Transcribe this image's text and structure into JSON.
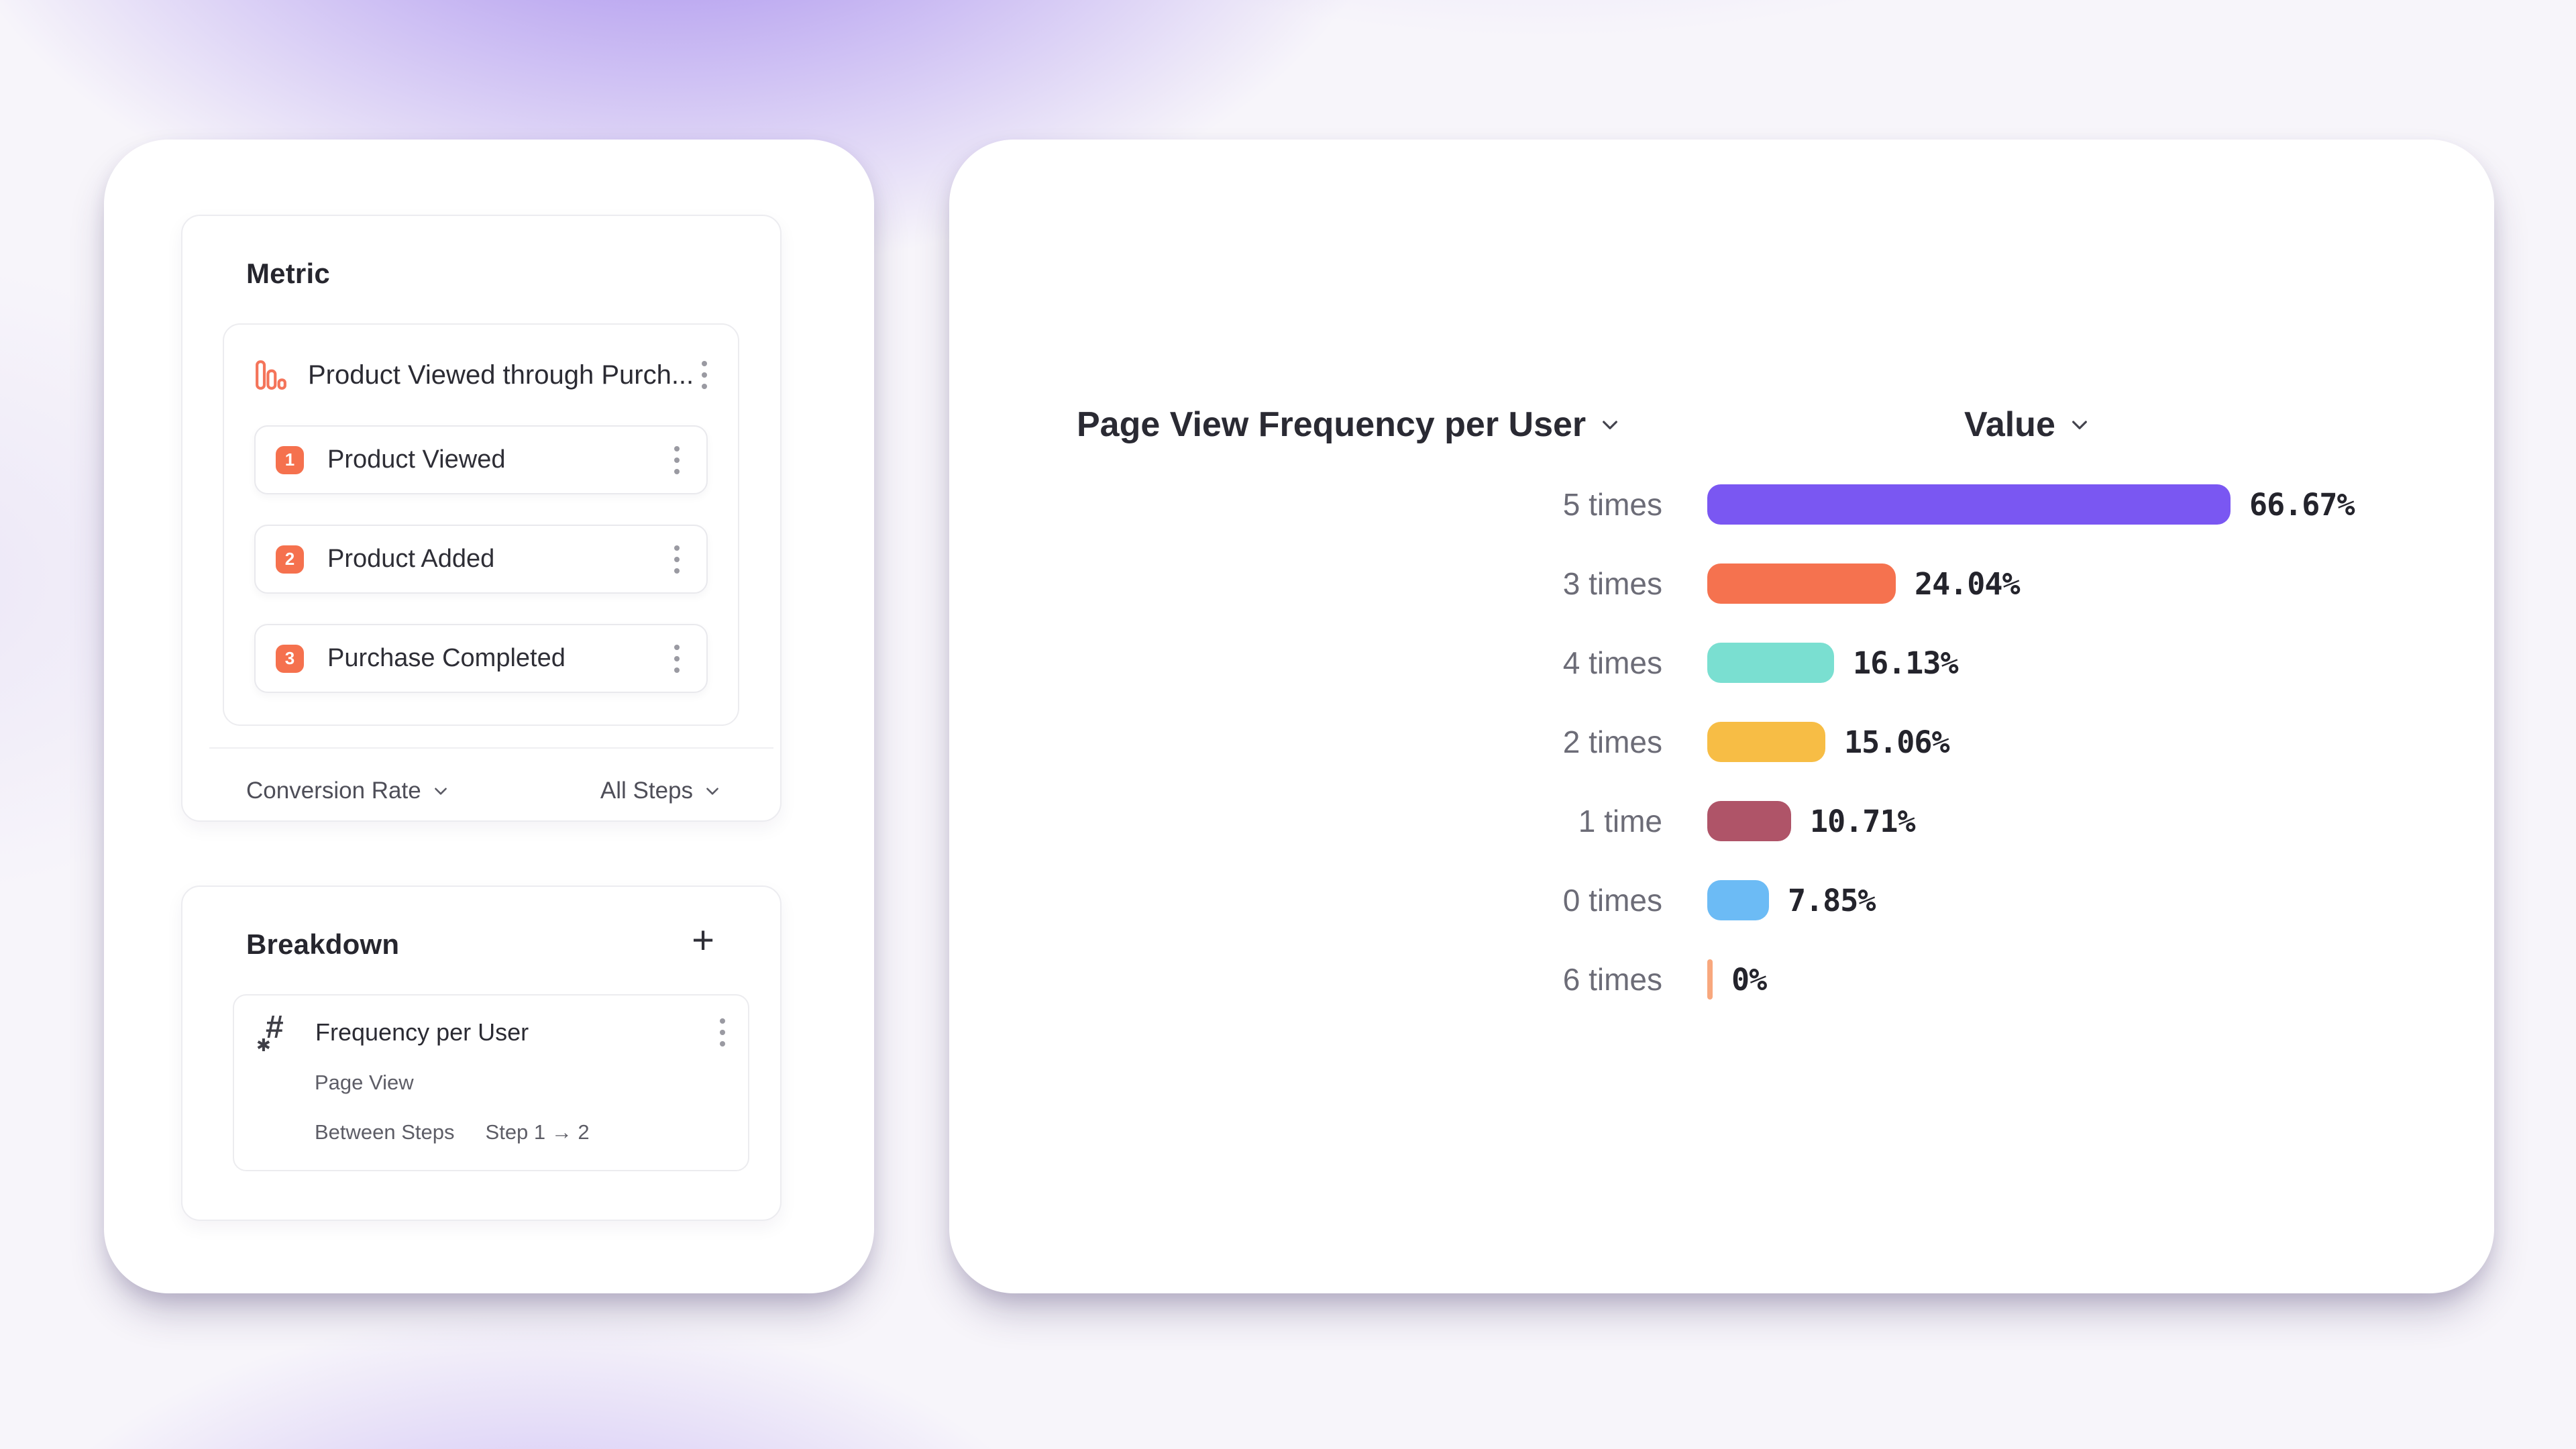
{
  "left_panel": {
    "metric_card": {
      "title": "Metric",
      "funnel": {
        "name": "Product Viewed through Purch...",
        "icon": "funnel-bars-icon",
        "accent_color": "#F5714E",
        "steps": [
          {
            "num": "1",
            "label": "Product Viewed"
          },
          {
            "num": "2",
            "label": "Product Added"
          },
          {
            "num": "3",
            "label": "Purchase Completed"
          }
        ]
      },
      "footer": {
        "left_dropdown": "Conversion Rate",
        "right_dropdown": "All Steps"
      }
    },
    "breakdown_card": {
      "title": "Breakdown",
      "add_label": "+",
      "item": {
        "icon": "numeric-property-hash-icon",
        "hash_glyph": "#",
        "star_glyph": "✱",
        "title": "Frequency per User",
        "event": "Page View",
        "scope_label": "Between Steps",
        "scope_value": "Step 1 → 2"
      }
    }
  },
  "chart_panel": {
    "col1_header": "Page View Frequency per User",
    "col2_header": "Value"
  },
  "chart_data": {
    "type": "bar",
    "orientation": "horizontal",
    "title": "Page View Frequency per User",
    "value_header": "Value",
    "categories": [
      "5 times",
      "3 times",
      "4 times",
      "2 times",
      "1 time",
      "0 times",
      "6 times"
    ],
    "values": [
      66.67,
      24.04,
      16.13,
      15.06,
      10.71,
      7.85,
      0
    ],
    "labels": [
      "66.67%",
      "24.04%",
      "16.13%",
      "15.06%",
      "10.71%",
      "7.85%",
      "0%"
    ],
    "colors": [
      "#7A57F2",
      "#F5724F",
      "#7ADFD1",
      "#F7BD45",
      "#AF5468",
      "#6CBBF5",
      "#F8A87E"
    ],
    "xlim": [
      0,
      66.67
    ],
    "unit": "%",
    "grid": false,
    "legend": false
  }
}
